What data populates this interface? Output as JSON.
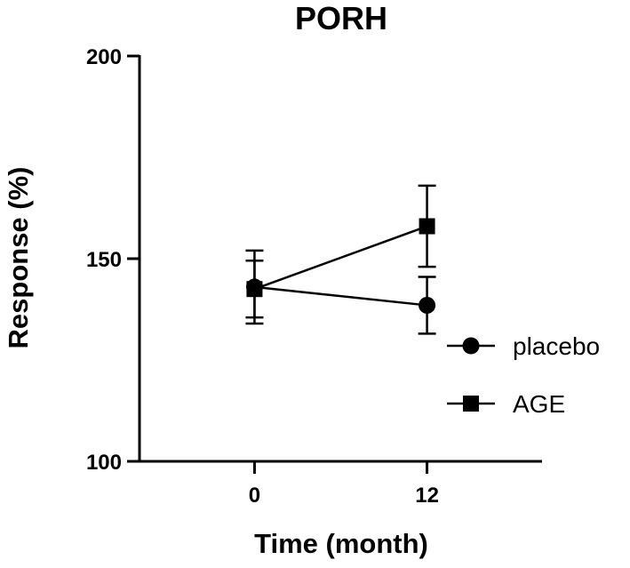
{
  "chart_data": {
    "type": "line",
    "title": "PORH",
    "xlabel": "Time (month)",
    "ylabel": "Response (%)",
    "x": [
      0,
      12
    ],
    "x_tick_labels": [
      "0",
      "12"
    ],
    "y_tick_labels": [
      "100",
      "150",
      "200"
    ],
    "yticks": [
      100,
      150,
      200
    ],
    "ylim": [
      100,
      200
    ],
    "xlim": [
      -8,
      20
    ],
    "grid": false,
    "legend_position": "right",
    "series": [
      {
        "name": "placebo",
        "marker": "circle",
        "values": [
          143,
          138.5
        ],
        "error": [
          9,
          7
        ],
        "color": "#000000"
      },
      {
        "name": "AGE",
        "marker": "square",
        "values": [
          142.5,
          158
        ],
        "error": [
          7,
          10
        ],
        "color": "#000000"
      }
    ]
  }
}
